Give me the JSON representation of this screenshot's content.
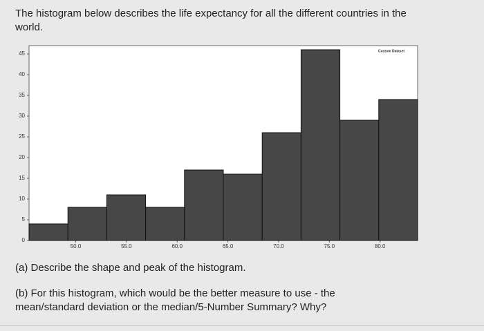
{
  "intro": "The histogram below describes the life expectancy for all the different countries in the world.",
  "questions": [
    "(a) Describe the shape and peak of the histogram.",
    "(b) For this histogram, which would be the better measure to use - the mean/standard deviation or the median/5-Number Summary? Why?"
  ],
  "chart_data": {
    "type": "histogram",
    "bins": [
      45.4,
      49.23,
      53.06,
      56.89,
      60.72,
      64.55,
      68.38,
      72.21,
      76.04,
      79.87,
      83.7
    ],
    "series": [
      {
        "name": "Custom Dataset",
        "color": "#474747",
        "values": [
          4,
          8,
          11,
          8,
          17,
          16,
          26,
          46,
          29,
          34
        ]
      }
    ],
    "xlim": [
      45.4,
      83.7
    ],
    "xticks": [
      {
        "value": 50,
        "label": "50.0"
      },
      {
        "value": 55,
        "label": "55.0"
      },
      {
        "value": 60,
        "label": "60.0"
      },
      {
        "value": 65,
        "label": "65.0"
      },
      {
        "value": 70,
        "label": "70.0"
      },
      {
        "value": 75,
        "label": "75.0"
      },
      {
        "value": 80,
        "label": "80.0"
      }
    ],
    "ylim": [
      0,
      47
    ],
    "yticks": [
      0,
      5,
      10,
      15,
      20,
      25,
      30,
      35,
      40,
      45
    ],
    "grid": false
  }
}
